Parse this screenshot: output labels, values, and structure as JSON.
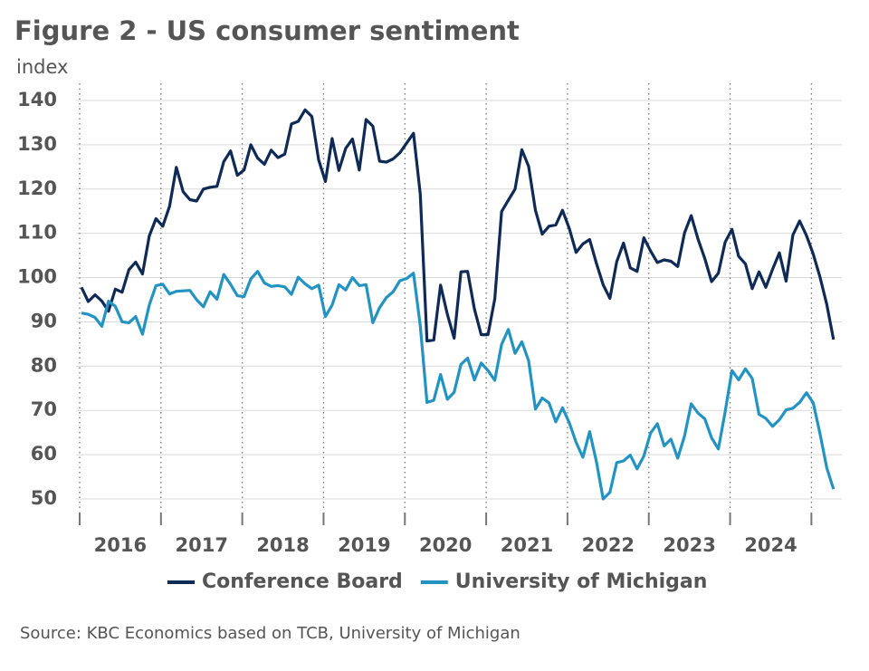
{
  "chart_data": {
    "type": "line",
    "title": "Figure 2 - US consumer sentiment",
    "y_label": "index",
    "source": "Source: KBC Economics based on TCB, University of Michigan",
    "categories": [
      null,
      null,
      null,
      null,
      null,
      null,
      "2016",
      null,
      null,
      null,
      null,
      null,
      null,
      null,
      null,
      null,
      null,
      null,
      "2017",
      null,
      null,
      null,
      null,
      null,
      null,
      null,
      null,
      null,
      null,
      null,
      "2018",
      null,
      null,
      null,
      null,
      null,
      null,
      null,
      null,
      null,
      null,
      null,
      "2019",
      null,
      null,
      null,
      null,
      null,
      null,
      null,
      null,
      null,
      null,
      null,
      "2020",
      null,
      null,
      null,
      null,
      null,
      null,
      null,
      null,
      null,
      null,
      null,
      "2021",
      null,
      null,
      null,
      null,
      null,
      null,
      null,
      null,
      null,
      null,
      null,
      "2022",
      null,
      null,
      null,
      null,
      null,
      null,
      null,
      null,
      null,
      null,
      null,
      "2023",
      null,
      null,
      null,
      null,
      null,
      null,
      null,
      null,
      null,
      null,
      null,
      "2024",
      null,
      null,
      null,
      null,
      null,
      null,
      null,
      null,
      null
    ],
    "series": [
      {
        "name": "Conference Board",
        "color": "#0e2a55",
        "values": [
          97.8,
          94.6,
          96.1,
          94.7,
          92.4,
          97.4,
          96.7,
          101.8,
          103.5,
          100.8,
          109.4,
          113.3,
          111.6,
          116.1,
          124.9,
          119.4,
          117.6,
          117.3,
          120.0,
          120.4,
          120.6,
          126.2,
          128.6,
          123.1,
          124.3,
          130.0,
          127.0,
          125.6,
          128.8,
          127.1,
          127.9,
          134.7,
          135.3,
          137.9,
          136.4,
          126.6,
          121.7,
          131.4,
          124.2,
          129.2,
          131.3,
          124.3,
          135.7,
          134.2,
          126.3,
          126.1,
          126.8,
          128.2,
          130.4,
          132.6,
          118.8,
          85.7,
          85.9,
          98.3,
          91.7,
          86.3,
          101.3,
          101.4,
          92.9,
          87.1,
          87.1,
          95.2,
          114.9,
          117.5,
          120.0,
          128.9,
          125.1,
          115.2,
          109.8,
          111.6,
          111.9,
          115.2,
          111.1,
          105.7,
          107.6,
          108.6,
          103.2,
          98.4,
          95.3,
          103.6,
          107.8,
          102.2,
          101.4,
          109.0,
          106.0,
          103.4,
          104.0,
          103.7,
          102.5,
          110.1,
          114.0,
          108.7,
          104.3,
          99.1,
          101.0,
          108.0,
          110.9,
          104.8,
          103.1,
          97.5,
          101.3,
          97.8,
          101.9,
          105.6,
          99.2,
          109.6,
          112.8,
          109.5,
          105.3,
          100.1,
          93.9,
          86.0
        ]
      },
      {
        "name": "University of Michigan",
        "color": "#2393c2",
        "values": [
          92.0,
          91.7,
          91.0,
          89.0,
          94.7,
          93.5,
          90.0,
          89.8,
          91.2,
          87.2,
          93.8,
          98.2,
          98.5,
          96.3,
          96.9,
          97.0,
          97.1,
          95.0,
          93.4,
          96.8,
          95.1,
          100.7,
          98.5,
          95.9,
          95.7,
          99.7,
          101.4,
          98.8,
          98.0,
          98.2,
          97.9,
          96.2,
          100.1,
          98.6,
          97.5,
          98.3,
          91.2,
          93.8,
          98.4,
          97.2,
          100.0,
          98.2,
          98.4,
          89.8,
          93.2,
          95.5,
          96.8,
          99.3,
          99.8,
          101.0,
          89.1,
          71.8,
          72.3,
          78.1,
          72.5,
          74.1,
          80.4,
          81.8,
          76.9,
          80.7,
          79.0,
          76.8,
          84.9,
          88.3,
          82.9,
          85.5,
          81.2,
          70.3,
          72.8,
          71.7,
          67.4,
          70.6,
          67.2,
          62.8,
          59.4,
          65.2,
          58.4,
          50.0,
          51.5,
          58.2,
          58.6,
          59.9,
          56.8,
          59.7,
          64.9,
          67.0,
          62.0,
          63.5,
          59.2,
          64.2,
          71.5,
          69.4,
          68.1,
          63.8,
          61.3,
          69.7,
          79.0,
          76.9,
          79.4,
          77.2,
          69.1,
          68.2,
          66.4,
          67.9,
          70.1,
          70.5,
          71.8,
          74.0,
          71.7,
          64.7,
          57.0,
          52.2
        ]
      }
    ],
    "ylim": [
      50,
      140
    ],
    "yticks": [
      50,
      60,
      70,
      80,
      90,
      100,
      110,
      120,
      130,
      140
    ],
    "grid": true,
    "legend": "bottom"
  }
}
